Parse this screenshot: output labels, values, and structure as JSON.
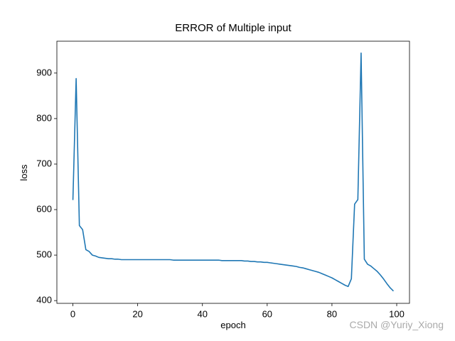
{
  "chart_data": {
    "type": "line",
    "title": "ERROR of Multiple input",
    "xlabel": "epoch",
    "ylabel": "loss",
    "x": [
      0,
      1,
      2,
      3,
      4,
      5,
      6,
      7,
      8,
      9,
      10,
      11,
      12,
      13,
      14,
      15,
      16,
      17,
      18,
      19,
      20,
      21,
      22,
      23,
      24,
      25,
      26,
      27,
      28,
      29,
      30,
      31,
      32,
      33,
      34,
      35,
      36,
      37,
      38,
      39,
      40,
      41,
      42,
      43,
      44,
      45,
      46,
      47,
      48,
      49,
      50,
      51,
      52,
      53,
      54,
      55,
      56,
      57,
      58,
      59,
      60,
      61,
      62,
      63,
      64,
      65,
      66,
      67,
      68,
      69,
      70,
      71,
      72,
      73,
      74,
      75,
      76,
      77,
      78,
      79,
      80,
      81,
      82,
      83,
      84,
      85,
      86,
      87,
      88,
      89,
      90,
      91,
      92,
      93,
      94,
      95,
      96,
      97,
      98,
      99
    ],
    "series": [
      {
        "color": "#1f77b4",
        "values": [
          621,
          888,
          565,
          556,
          512,
          508,
          500,
          498,
          495,
          494,
          493,
          492,
          492,
          491,
          491,
          490,
          490,
          490,
          490,
          490,
          490,
          490,
          490,
          490,
          490,
          490,
          490,
          490,
          490,
          490,
          490,
          489,
          489,
          489,
          489,
          489,
          489,
          489,
          489,
          489,
          489,
          489,
          489,
          489,
          489,
          489,
          488,
          488,
          488,
          488,
          488,
          488,
          488,
          487,
          487,
          486,
          486,
          485,
          485,
          484,
          484,
          483,
          482,
          481,
          480,
          479,
          478,
          477,
          476,
          475,
          473,
          472,
          470,
          468,
          466,
          464,
          462,
          459,
          456,
          453,
          450,
          446,
          442,
          438,
          434,
          431,
          448,
          612,
          622,
          944,
          491,
          480,
          476,
          470,
          464,
          456,
          447,
          437,
          428,
          421
        ]
      }
    ],
    "xlim": [
      -4.95,
      103.95
    ],
    "xticks": [
      0,
      20,
      40,
      60,
      80,
      100
    ],
    "ylim": [
      394,
      970
    ],
    "yticks": [
      400,
      500,
      600,
      700,
      800,
      900
    ],
    "watermark": "CSDN @Yuriy_Xiong"
  }
}
